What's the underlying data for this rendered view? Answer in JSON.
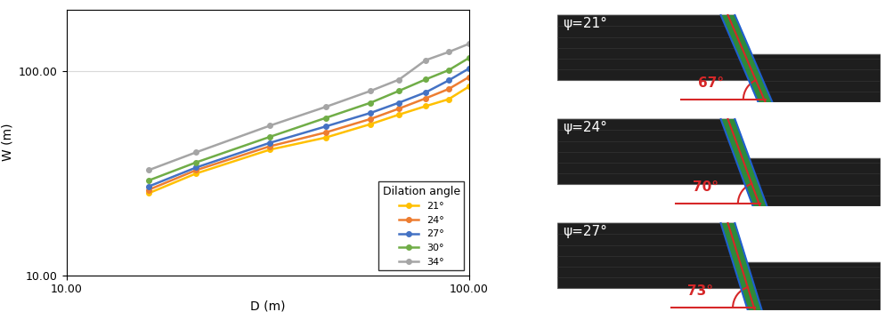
{
  "chart_data": {
    "type": "line",
    "log": true,
    "grid": true,
    "legend": "lower right",
    "legend_title": "Dilation angle",
    "x_label": "D (m)",
    "y_label": "W (m)",
    "x": [
      16,
      21,
      32,
      44,
      57,
      67,
      78,
      89,
      100
    ],
    "xlim": [
      10,
      100
    ],
    "ylim": [
      10,
      200
    ],
    "xticks": [
      {
        "value": 10,
        "label": "10.00"
      },
      {
        "value": 100,
        "label": "100.00"
      }
    ],
    "yticks": [
      {
        "value": 10,
        "label": "10.00"
      },
      {
        "value": 100,
        "label": "100.00"
      }
    ],
    "marker": "o",
    "line_style": "solid",
    "series": [
      {
        "name": "21°",
        "color": "#ffc000",
        "values": [
          25.2,
          31.5,
          41.2,
          47.2,
          55,
          61.2,
          67.3,
          72.8,
          84
        ]
      },
      {
        "name": "24°",
        "color": "#ed7d31",
        "values": [
          26.2,
          32.7,
          42.8,
          50,
          58.3,
          65.5,
          73.5,
          81.7,
          93.5
        ]
      },
      {
        "name": "27°",
        "color": "#4472c4",
        "values": [
          27.2,
          33.7,
          44.5,
          53.5,
          62.4,
          70,
          78.6,
          90,
          103
        ]
      },
      {
        "name": "30°",
        "color": "#70ad47",
        "values": [
          29.1,
          35.7,
          47.6,
          58.9,
          70,
          80,
          91,
          101,
          116
        ]
      },
      {
        "name": "34°",
        "color": "#a5a5a5",
        "values": [
          32.7,
          40,
          54,
          66.7,
          80,
          90.8,
          113,
          124,
          136
        ]
      }
    ]
  },
  "panels": [
    {
      "psi_label": "ψ=21°",
      "angle": 67,
      "angle_label": "67°"
    },
    {
      "psi_label": "ψ=24°",
      "angle": 70,
      "angle_label": "70°"
    },
    {
      "psi_label": "ψ=27°",
      "angle": 73,
      "angle_label": "73°"
    }
  ]
}
